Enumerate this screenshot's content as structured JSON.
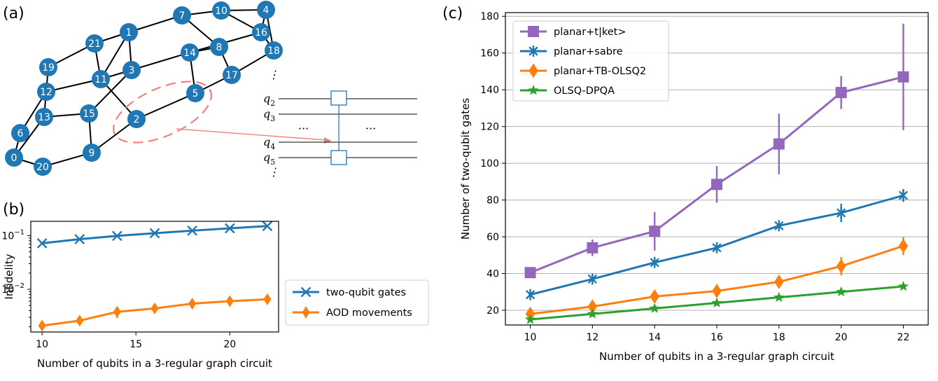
{
  "panels": {
    "a": "(a)",
    "b": "(b)",
    "c": "(c)"
  },
  "colors": {
    "node": "#1f77b4",
    "edge": "#000000",
    "highlight": "#f08080",
    "gate": "#1f77b4",
    "c_series": [
      "#9467bd",
      "#1f77b4",
      "#ff7f0e",
      "#2ca02c"
    ],
    "b_series": [
      "#1f77b4",
      "#ff7f0e"
    ]
  },
  "graph": {
    "nodes": [
      "21",
      "1",
      "7",
      "10",
      "4",
      "16",
      "18",
      "19",
      "11",
      "3",
      "14",
      "8",
      "17",
      "12",
      "5",
      "13",
      "15",
      "2",
      "6",
      "0",
      "20",
      "9"
    ],
    "edges": [
      [
        "21",
        "1"
      ],
      [
        "21",
        "19"
      ],
      [
        "21",
        "11"
      ],
      [
        "1",
        "3"
      ],
      [
        "1",
        "7"
      ],
      [
        "1",
        "11"
      ],
      [
        "7",
        "10"
      ],
      [
        "7",
        "8"
      ],
      [
        "10",
        "4"
      ],
      [
        "10",
        "16"
      ],
      [
        "4",
        "16"
      ],
      [
        "4",
        "18"
      ],
      [
        "16",
        "18"
      ],
      [
        "16",
        "14"
      ],
      [
        "18",
        "17"
      ],
      [
        "19",
        "12"
      ],
      [
        "11",
        "12"
      ],
      [
        "11",
        "3"
      ],
      [
        "11",
        "2"
      ],
      [
        "3",
        "14"
      ],
      [
        "3",
        "15"
      ],
      [
        "14",
        "8"
      ],
      [
        "14",
        "5"
      ],
      [
        "8",
        "17"
      ],
      [
        "12",
        "13"
      ],
      [
        "12",
        "6"
      ],
      [
        "13",
        "15"
      ],
      [
        "13",
        "0"
      ],
      [
        "15",
        "9"
      ],
      [
        "2",
        "5"
      ],
      [
        "2",
        "9"
      ],
      [
        "5",
        "17"
      ],
      [
        "6",
        "0"
      ],
      [
        "0",
        "20"
      ],
      [
        "20",
        "9"
      ]
    ]
  },
  "circuit": {
    "qubits": [
      {
        "name": "q",
        "sub": "2"
      },
      {
        "name": "q",
        "sub": "3"
      },
      {
        "name": "q",
        "sub": "4"
      },
      {
        "name": "q",
        "sub": "5"
      }
    ],
    "vdots": "⋮",
    "ellipsis": "···"
  },
  "chart_data": [
    {
      "id": "b",
      "type": "line",
      "xlabel": "Number of qubits in a 3-regular graph circuit",
      "ylabel": "Infidelity",
      "yscale": "log",
      "xlim": [
        9.4,
        22.6
      ],
      "ylim": [
        0.0016,
        0.185
      ],
      "xticks": [
        10,
        15,
        20
      ],
      "ytick_labels": [
        {
          "value": 0.1,
          "base": "10",
          "exp": "−1"
        },
        {
          "value": 0.01,
          "base": "10",
          "exp": "−2"
        }
      ],
      "x": [
        10,
        12,
        14,
        16,
        18,
        20,
        22
      ],
      "legend": "right",
      "series": [
        {
          "name": "two-qubit gates",
          "marker": "x",
          "values": [
            0.072,
            0.086,
            0.099,
            0.111,
            0.124,
            0.137,
            0.151
          ],
          "err": [
            0,
            0,
            0,
            0,
            0,
            0,
            0
          ]
        },
        {
          "name": "AOD movements",
          "marker": "diamond",
          "values": [
            0.0021,
            0.0026,
            0.0038,
            0.0044,
            0.0054,
            0.006,
            0.0065
          ],
          "err": [
            0.0002,
            0.0003,
            0.0009,
            0.0004,
            0.0011,
            0.0007,
            0.0009
          ]
        }
      ]
    },
    {
      "id": "c",
      "type": "line",
      "xlabel": "Number of qubits in a 3-regular graph circuit",
      "ylabel": "Number of two-qubit gates",
      "xlim": [
        9.2,
        22.8
      ],
      "ylim": [
        12,
        182
      ],
      "xticks": [
        10,
        12,
        14,
        16,
        18,
        20,
        22
      ],
      "yticks": [
        20,
        40,
        60,
        80,
        100,
        120,
        140,
        160,
        180
      ],
      "grid": "horizontal",
      "legend": "top-left",
      "x": [
        10,
        12,
        14,
        16,
        18,
        20,
        22
      ],
      "series": [
        {
          "name": "planar+t|ket>",
          "marker": "square",
          "values": [
            40.5,
            54,
            63,
            88.5,
            110.5,
            138.5,
            147
          ],
          "err": [
            1.5,
            4.5,
            10.5,
            10,
            16.5,
            9,
            29
          ]
        },
        {
          "name": "planar+sabre",
          "marker": "asterisk",
          "values": [
            28.5,
            37,
            46,
            54,
            66,
            73,
            82.5
          ],
          "err": [
            1,
            1,
            1.5,
            1,
            1,
            5,
            3.5
          ]
        },
        {
          "name": "planar+TB-OLSQ2",
          "marker": "diamond",
          "values": [
            18,
            22,
            27.5,
            30.5,
            35.5,
            44,
            55
          ],
          "err": [
            1,
            1.5,
            3,
            2,
            2.5,
            5,
            5
          ]
        },
        {
          "name": "OLSQ-DPQA",
          "marker": "star",
          "values": [
            15,
            18,
            21,
            24,
            27,
            30,
            33
          ],
          "err": [
            0,
            0,
            0,
            0,
            0,
            0,
            0
          ]
        }
      ]
    }
  ]
}
